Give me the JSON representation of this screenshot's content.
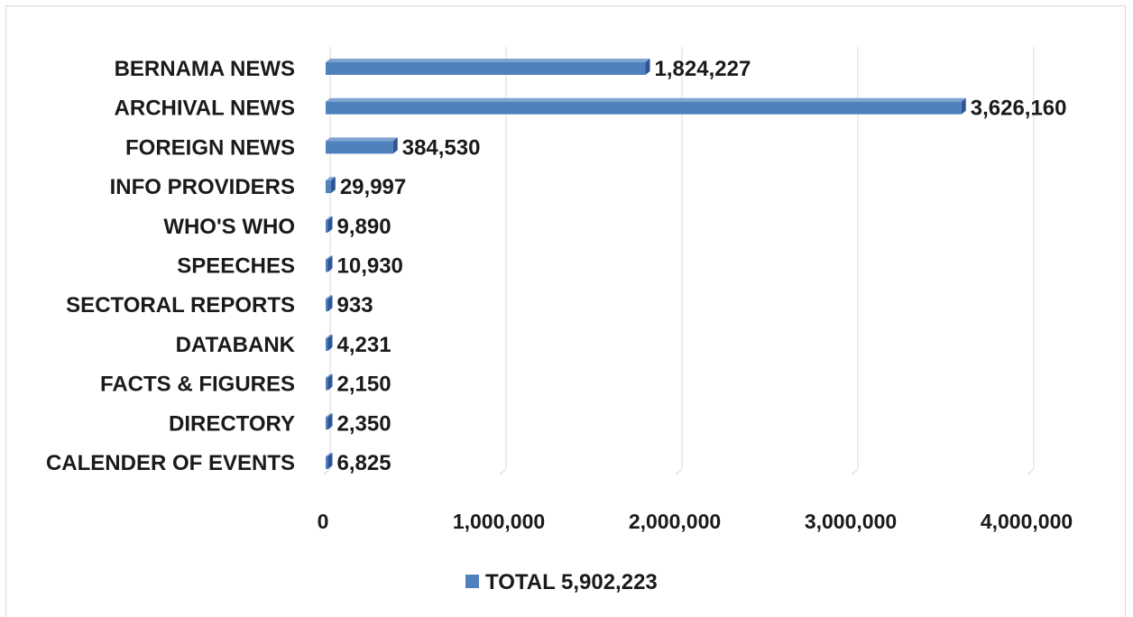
{
  "chart_data": {
    "type": "bar",
    "orientation": "horizontal",
    "style": "3d",
    "categories": [
      "BERNAMA NEWS",
      "ARCHIVAL NEWS",
      "FOREIGN NEWS",
      "INFO PROVIDERS",
      "WHO'S WHO",
      "SPEECHES",
      "SECTORAL REPORTS",
      "DATABANK",
      "FACTS & FIGURES",
      "DIRECTORY",
      "CALENDER OF EVENTS"
    ],
    "series": [
      {
        "name": "TOTAL 5,902,223",
        "color": "#4f81bd",
        "values": [
          1824227,
          3626160,
          384530,
          29997,
          9890,
          10930,
          933,
          4231,
          2150,
          2350,
          6825
        ],
        "data_labels": [
          "1,824,227",
          "3,626,160",
          "384,530",
          "29,997",
          "9,890",
          "10,930",
          "933",
          "4,231",
          "2,150",
          "2,350",
          "6,825"
        ]
      }
    ],
    "xlim": [
      0,
      4000000
    ],
    "x_ticks": [
      {
        "value": 0,
        "label": "0"
      },
      {
        "value": 1000000,
        "label": "1,000,000"
      },
      {
        "value": 2000000,
        "label": "2,000,000"
      },
      {
        "value": 3000000,
        "label": "3,000,000"
      },
      {
        "value": 4000000,
        "label": "4,000,000"
      }
    ],
    "title": "",
    "xlabel": "",
    "ylabel": "",
    "grid": true,
    "legend_position": "bottom"
  }
}
